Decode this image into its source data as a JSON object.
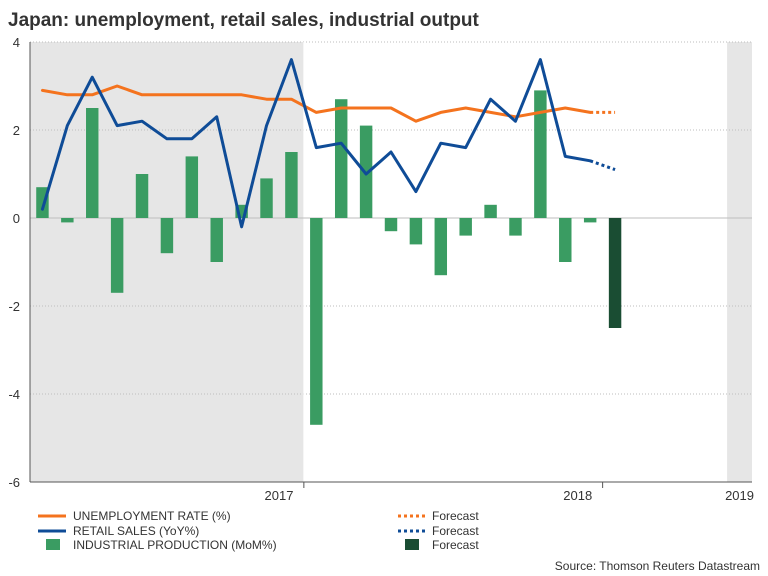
{
  "chart_data": {
    "type": "bar+line",
    "title": "Japan: unemployment, retail sales, industrial output",
    "source": "Source: Thomson Reuters Datastream",
    "ylim": [
      -6,
      4
    ],
    "yticks": [
      "4",
      "2",
      "0",
      "-2",
      "-4",
      "-6"
    ],
    "ytick_values": [
      4,
      2,
      0,
      -2,
      -4,
      -6
    ],
    "months": [
      "2016-09",
      "2016-10",
      "2016-11",
      "2016-12",
      "2017-01",
      "2017-02",
      "2017-03",
      "2017-04",
      "2017-05",
      "2017-06",
      "2017-07",
      "2017-08",
      "2017-09",
      "2017-10",
      "2017-11",
      "2017-12",
      "2018-01",
      "2018-02",
      "2018-03",
      "2018-04",
      "2018-05",
      "2018-06",
      "2018-07",
      "2018-08",
      "2018-09",
      "2018-10",
      "2018-11",
      "2018-12",
      "2019-01"
    ],
    "year_labels": [
      {
        "label": "2017",
        "center_index": 9.5
      },
      {
        "label": "2018",
        "center_index": 21.5
      },
      {
        "label": "2019",
        "center_index": 28.0
      }
    ],
    "period_dividers": [
      10.5,
      22.5
    ],
    "shaded_regions": [
      [
        -0.5,
        10.5
      ],
      [
        27.5,
        29.5
      ]
    ],
    "series": [
      {
        "name": "UNEMPLOYMENT RATE (%)",
        "kind": "line",
        "color": "#f4731e",
        "values": [
          2.9,
          2.8,
          2.8,
          3.0,
          2.8,
          2.8,
          2.8,
          2.8,
          2.8,
          2.7,
          2.7,
          2.4,
          2.5,
          2.5,
          2.5,
          2.2,
          2.4,
          2.5,
          2.4,
          2.3,
          2.4,
          2.5,
          2.4,
          null
        ],
        "start_index": 0,
        "forecast": {
          "from_index": 22,
          "values": [
            2.4,
            2.4
          ],
          "label": "Forecast"
        }
      },
      {
        "name": "RETAIL SALES (YoY%)",
        "kind": "line",
        "color": "#0f4c97",
        "values": [
          0.2,
          2.1,
          3.2,
          2.1,
          2.2,
          1.8,
          1.8,
          2.3,
          -0.2,
          2.1,
          3.6,
          1.6,
          1.7,
          1.0,
          1.5,
          0.6,
          1.7,
          1.6,
          2.7,
          2.2,
          3.6,
          1.4,
          1.3
        ],
        "start_index": 0,
        "forecast": {
          "from_index": 22,
          "values": [
            1.3,
            1.1
          ],
          "label": "Forecast"
        }
      },
      {
        "name": "INDUSTRIAL PRODUCTION (MoM%)",
        "kind": "bar",
        "color": "#3a9c62",
        "values": [
          0.7,
          -0.1,
          2.5,
          -1.7,
          1.0,
          -0.8,
          1.4,
          -1.0,
          0.3,
          0.9,
          1.5,
          -4.7,
          2.7,
          2.1,
          -0.3,
          -0.6,
          -1.3,
          -0.4,
          0.3,
          -0.4,
          2.9,
          -1.0,
          -0.1
        ],
        "start_index": 0,
        "forecast": {
          "index": 23,
          "value": -2.5,
          "color": "#1a4d33",
          "label": "Forecast"
        }
      }
    ]
  },
  "legend": [
    {
      "label": "UNEMPLOYMENT RATE (%)",
      "forecast_label": "Forecast",
      "color": "#f4731e",
      "kind": "line"
    },
    {
      "label": "RETAIL SALES (YoY%)",
      "forecast_label": "Forecast",
      "color": "#0f4c97",
      "kind": "line"
    },
    {
      "label": "INDUSTRIAL PRODUCTION (MoM%)",
      "forecast_label": "Forecast",
      "color": "#3a9c62",
      "forecast_color": "#1a4d33",
      "kind": "bar"
    }
  ],
  "colors": {
    "shade": "#e6e6e6",
    "grid": "#bdbdbd",
    "axis": "#555555",
    "divider": "#ffffff"
  }
}
